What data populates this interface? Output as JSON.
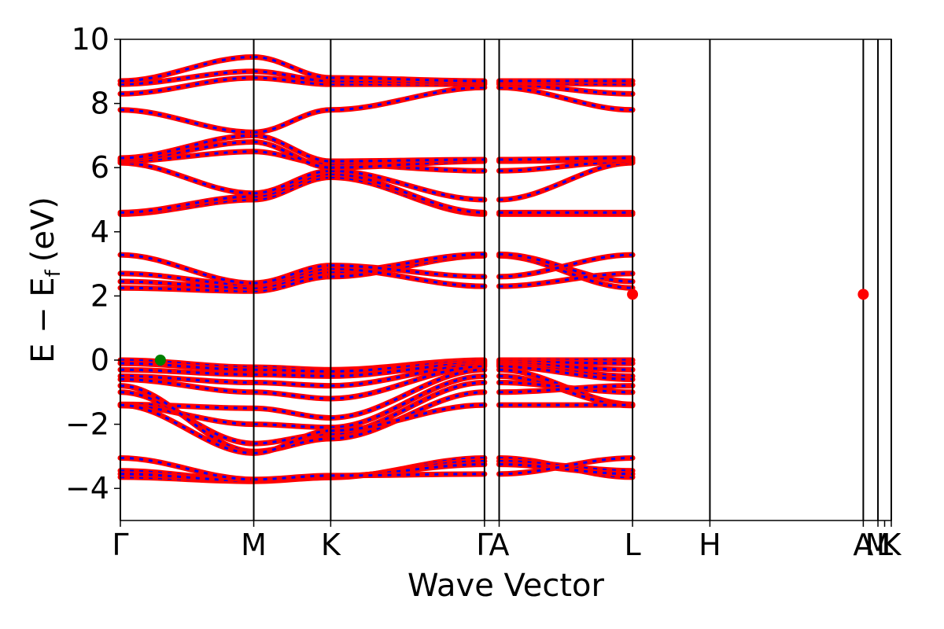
{
  "chart_data": {
    "type": "line",
    "xlabel": "Wave Vector",
    "ylabel": "E − E",
    "ylabel_subscript": "f",
    "ylabel_units": "(eV)",
    "ylim": [
      -5,
      10
    ],
    "yticks": [
      -4,
      -2,
      0,
      2,
      4,
      6,
      8,
      10
    ],
    "ytick_labels": [
      "−4",
      "−2",
      "0",
      "2",
      "4",
      "6",
      "8",
      "10"
    ],
    "grid": false,
    "colors": {
      "band_red": "#ff0000",
      "band_blue": "#0000ff",
      "vbm_marker": "#008000",
      "cbm_marker": "#ff0000",
      "divider": "#000000"
    },
    "kpath_x": [
      0,
      1.0,
      1.577,
      2.73,
      2.84,
      3.84,
      4.42,
      5.57,
      5.68,
      5.78
    ],
    "kpath_labels": [
      "Γ",
      "M",
      "K",
      "Γ",
      "A",
      "L",
      "H",
      "A",
      "M",
      "L",
      "K"
    ],
    "kpath_label_x": [
      0,
      1.0,
      1.577,
      2.73,
      2.84,
      3.84,
      4.42,
      5.57,
      5.68,
      5.73,
      5.78
    ],
    "segments": [
      {
        "from": "Γ",
        "to": "M",
        "x": [
          0,
          1.0
        ]
      },
      {
        "from": "M",
        "to": "K",
        "x": [
          1.0,
          1.577
        ]
      },
      {
        "from": "K",
        "to": "Γ",
        "x": [
          1.577,
          2.73
        ]
      },
      {
        "from": "A",
        "to": "L",
        "x": [
          2.84,
          3.84
        ]
      },
      {
        "from": "L",
        "to": "H",
        "x": [
          3.84,
          4.42
        ]
      },
      {
        "from": "H",
        "to": "A",
        "x": [
          4.42,
          5.57
        ]
      }
    ],
    "bands": {
      "valence_low": [
        [
          -3.65,
          -3.78,
          -3.66,
          -3.05
        ],
        [
          -3.45,
          -3.74,
          -3.64,
          -3.15
        ],
        [
          -3.55,
          -3.76,
          -3.62,
          -3.25
        ],
        [
          -3.05,
          -3.72,
          -3.6,
          -3.55
        ]
      ],
      "valence_main": [
        [
          0.0,
          -0.22,
          -0.3,
          0.0
        ],
        [
          -0.1,
          -0.3,
          -0.35,
          -0.05
        ],
        [
          -0.3,
          -0.45,
          -0.5,
          -0.1
        ],
        [
          -0.5,
          -0.7,
          -0.8,
          -0.15
        ],
        [
          -0.6,
          -1.0,
          -1.2,
          -0.2
        ],
        [
          -1.38,
          -1.5,
          -1.8,
          -0.3
        ],
        [
          -1.42,
          -2.0,
          -2.1,
          -0.5
        ],
        [
          -1.0,
          -2.6,
          -2.3,
          -0.7
        ],
        [
          -0.8,
          -2.85,
          -2.45,
          -1.0
        ],
        [
          -1.4,
          -2.9,
          -2.2,
          -1.4
        ]
      ],
      "conduction_1": [
        [
          2.25,
          2.15,
          2.6,
          3.25
        ],
        [
          2.45,
          2.25,
          2.75,
          3.3
        ],
        [
          2.7,
          2.35,
          2.85,
          2.3
        ],
        [
          3.28,
          2.4,
          2.95,
          2.6
        ]
      ],
      "conduction_2": [
        [
          4.55,
          5.0,
          5.7,
          4.55
        ],
        [
          4.6,
          5.1,
          5.8,
          4.6
        ],
        [
          6.15,
          5.2,
          5.9,
          5.0
        ],
        [
          6.2,
          6.5,
          6.1,
          5.9
        ]
      ],
      "conduction_3": [
        [
          6.25,
          6.8,
          6.0,
          6.2
        ],
        [
          6.3,
          7.0,
          6.2,
          6.25
        ],
        [
          7.8,
          7.1,
          7.8,
          8.5
        ],
        [
          8.3,
          8.8,
          8.6,
          8.6
        ],
        [
          8.6,
          9.0,
          8.7,
          8.65
        ],
        [
          8.7,
          9.45,
          8.8,
          8.7
        ]
      ]
    },
    "markers": [
      {
        "label": "VBM",
        "x": 0.3,
        "y": 0.0,
        "color": "#008000"
      },
      {
        "label": "CBM",
        "x": 3.84,
        "y": 2.05,
        "color": "#ff0000"
      },
      {
        "label": "CBM",
        "x": 5.57,
        "y": 2.05,
        "color": "#ff0000"
      }
    ]
  }
}
